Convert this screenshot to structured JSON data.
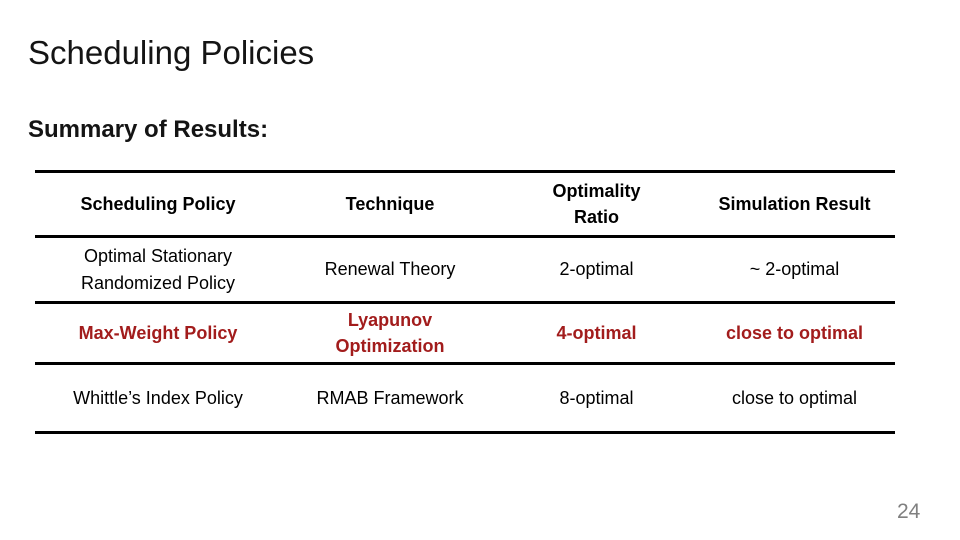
{
  "slide": {
    "title": "Scheduling Policies",
    "subtitle": "Summary of Results:",
    "page_number": "24"
  },
  "table": {
    "headers": [
      "Scheduling Policy",
      "Technique",
      "Optimality\nRatio",
      "Simulation Result"
    ],
    "rows": [
      {
        "cells": [
          "Optimal Stationary\nRandomized Policy",
          "Renewal Theory",
          "2-optimal",
          "~ 2-optimal"
        ],
        "highlighted": false
      },
      {
        "cells": [
          "Max-Weight Policy",
          "Lyapunov\nOptimization",
          "4-optimal",
          "close to optimal"
        ],
        "highlighted": true
      },
      {
        "cells": [
          "Whittle’s Index Policy",
          "RMAB Framework",
          "8-optimal",
          "close to optimal"
        ],
        "highlighted": false
      }
    ]
  },
  "colors": {
    "highlight_red": "#A21C1C",
    "body_text": "#000000",
    "title_text": "#141414",
    "page_number_gray": "#808080"
  }
}
